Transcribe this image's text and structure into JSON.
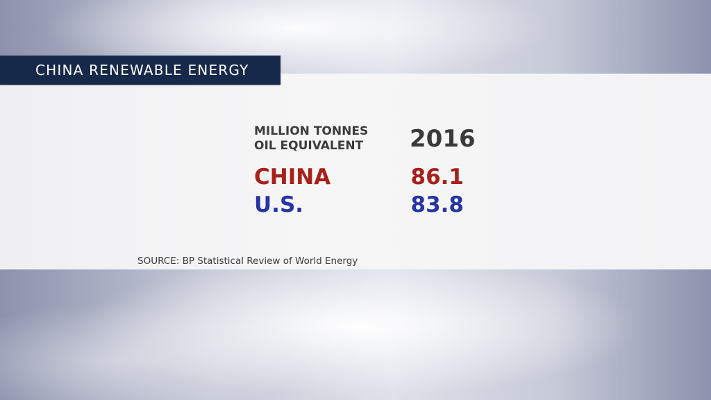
{
  "header": {
    "title": "CHINA RENEWABLE ENERGY"
  },
  "chart_data": {
    "type": "table",
    "title": "CHINA RENEWABLE ENERGY",
    "unit_label_lines": [
      "MILLION TONNES",
      "OIL EQUIVALENT"
    ],
    "column_header": "2016",
    "rows": [
      {
        "label": "CHINA",
        "value": "86.1",
        "color": "#a8201a"
      },
      {
        "label": "U.S.",
        "value": "83.8",
        "color": "#2634a6"
      }
    ],
    "source": "SOURCE: BP Statistical Review of World Energy"
  },
  "colors": {
    "title_bar": "#17294a",
    "china": "#a8201a",
    "us": "#2634a6",
    "text_dark": "#3a3a3a"
  }
}
